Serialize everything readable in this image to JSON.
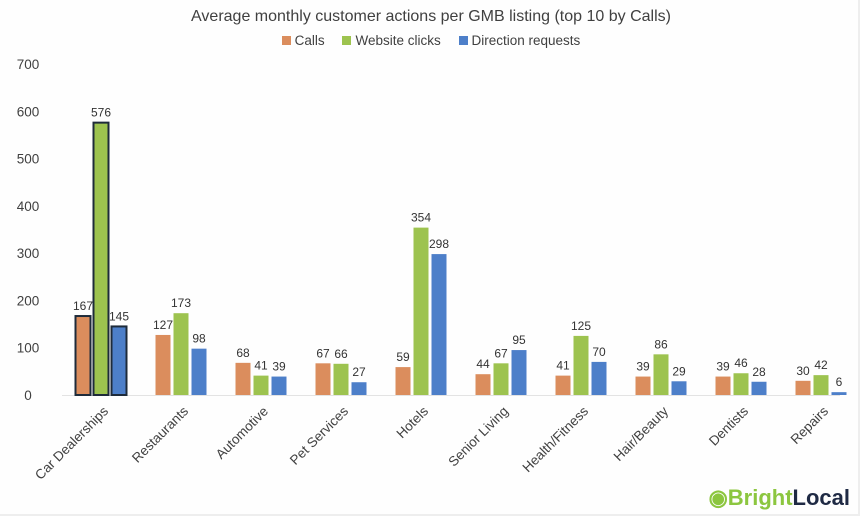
{
  "chart_data": {
    "type": "bar",
    "title": "Average monthly customer actions per GMB listing (top 10 by Calls)",
    "xlabel": "",
    "ylabel": "",
    "ylim": [
      0,
      700
    ],
    "yticks": [
      0,
      100,
      200,
      300,
      400,
      500,
      600,
      700
    ],
    "grid": false,
    "legend_position": "top",
    "categories": [
      "Car Dealerships",
      "Restaurants",
      "Automotive",
      "Pet Services",
      "Hotels",
      "Senior Living",
      "Health/Fitness",
      "Hair/Beauty",
      "Dentists",
      "Repairs"
    ],
    "series": [
      {
        "name": "Calls",
        "color": "#db8d5d",
        "values": [
          167,
          127,
          68,
          67,
          59,
          44,
          41,
          39,
          39,
          30
        ]
      },
      {
        "name": "Website clicks",
        "color": "#9dc34f",
        "values": [
          576,
          173,
          41,
          66,
          354,
          67,
          125,
          86,
          46,
          42
        ]
      },
      {
        "name": "Direction requests",
        "color": "#4d7fc9",
        "values": [
          145,
          98,
          39,
          27,
          298,
          95,
          70,
          29,
          28,
          6
        ]
      }
    ],
    "highlighted_category": "Car Dealerships"
  },
  "branding": {
    "logo_text_1": "Bright",
    "logo_text_2": "Local",
    "color_1": "#8cc63f",
    "color_2": "#1f2a44"
  }
}
